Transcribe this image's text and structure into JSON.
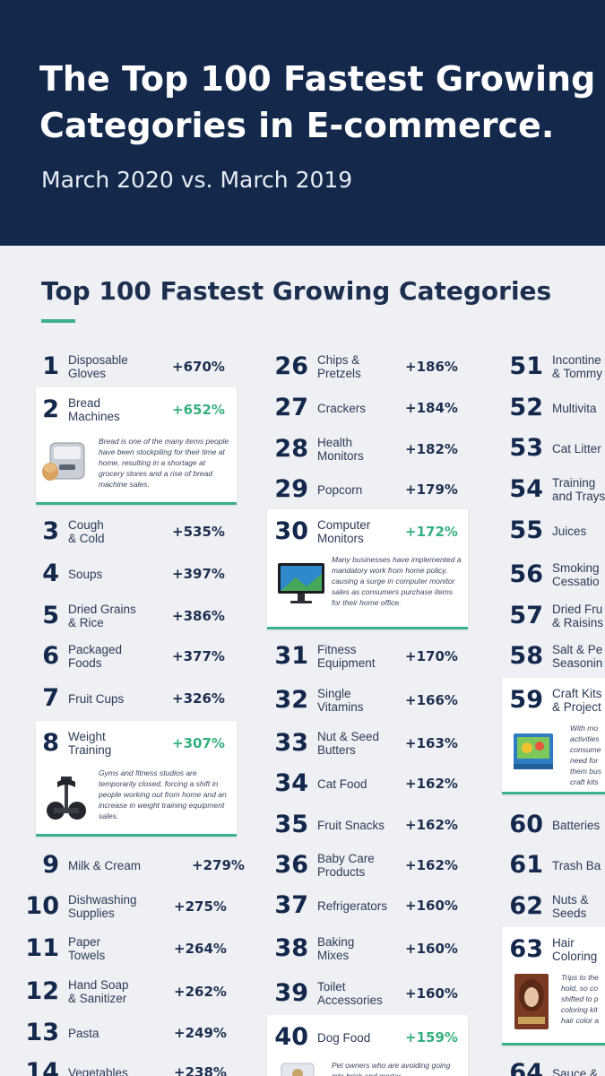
{
  "header": {
    "title_line1": "The Top 100 Fastest Growing",
    "title_line2": "Categories in E-commerce.",
    "subtitle": "March 2020 vs. March 2019"
  },
  "section": {
    "title": "Top 100 Fastest Growing Categories"
  },
  "col1": [
    {
      "num": "1",
      "name": "Disposable\nGloves",
      "pct": "+670%"
    },
    {
      "num": "2",
      "name": "Bread\nMachines",
      "pct": "+652%",
      "desc": "Bread is one of the many items people have been stockpiling for their time at home, resulting in a shortage at grocery stores and a rise of bread machine sales."
    },
    {
      "num": "3",
      "name": "Cough\n& Cold",
      "pct": "+535%"
    },
    {
      "num": "4",
      "name": "Soups",
      "pct": "+397%"
    },
    {
      "num": "5",
      "name": "Dried Grains\n& Rice",
      "pct": "+386%"
    },
    {
      "num": "6",
      "name": "Packaged\nFoods",
      "pct": "+377%"
    },
    {
      "num": "7",
      "name": "Fruit Cups",
      "pct": "+326%"
    },
    {
      "num": "8",
      "name": "Weight\nTraining",
      "pct": "+307%",
      "desc": "Gyms and fitness studios are temporarily closed, forcing a shift in people working out from home and an increase in weight training equipment sales."
    },
    {
      "num": "9",
      "name": "Milk & Cream",
      "pct": "+279%"
    },
    {
      "num": "10",
      "name": "Dishwashing\nSupplies",
      "pct": "+275%"
    },
    {
      "num": "11",
      "name": "Paper\nTowels",
      "pct": "+264%"
    },
    {
      "num": "12",
      "name": "Hand Soap\n& Sanitizer",
      "pct": "+262%"
    },
    {
      "num": "13",
      "name": "Pasta",
      "pct": "+249%"
    },
    {
      "num": "14",
      "name": "Vegetables",
      "pct": "+238%"
    }
  ],
  "col2": [
    {
      "num": "26",
      "name": "Chips &\nPretzels",
      "pct": "+186%"
    },
    {
      "num": "27",
      "name": "Crackers",
      "pct": "+184%"
    },
    {
      "num": "28",
      "name": "Health\nMonitors",
      "pct": "+182%"
    },
    {
      "num": "29",
      "name": "Popcorn",
      "pct": "+179%"
    },
    {
      "num": "30",
      "name": "Computer\nMonitors",
      "pct": "+172%",
      "desc": "Many businesses have implemented a mandatory work from home policy, causing a surge in computer monitor sales as consumers purchase items for their home office."
    },
    {
      "num": "31",
      "name": "Fitness\nEquipment",
      "pct": "+170%"
    },
    {
      "num": "32",
      "name": "Single\nVitamins",
      "pct": "+166%"
    },
    {
      "num": "33",
      "name": "Nut & Seed\nButters",
      "pct": "+163%"
    },
    {
      "num": "34",
      "name": "Cat Food",
      "pct": "+162%"
    },
    {
      "num": "35",
      "name": "Fruit Snacks",
      "pct": "+162%"
    },
    {
      "num": "36",
      "name": "Baby Care\nProducts",
      "pct": "+162%"
    },
    {
      "num": "37",
      "name": "Refrigerators",
      "pct": "+160%"
    },
    {
      "num": "38",
      "name": "Baking\nMixes",
      "pct": "+160%"
    },
    {
      "num": "39",
      "name": "Toilet\nAccessories",
      "pct": "+160%"
    },
    {
      "num": "40",
      "name": "Dog Food",
      "pct": "+159%",
      "desc": "Pet owners who are avoiding going into brick and mortar"
    }
  ],
  "col3": [
    {
      "num": "51",
      "name": "Incontine\n& Tommy"
    },
    {
      "num": "52",
      "name": "Multivita"
    },
    {
      "num": "53",
      "name": "Cat Litter"
    },
    {
      "num": "54",
      "name": "Training\nand Trays"
    },
    {
      "num": "55",
      "name": "Juices"
    },
    {
      "num": "56",
      "name": "Smoking\nCessatio"
    },
    {
      "num": "57",
      "name": "Dried Fru\n& Raisins"
    },
    {
      "num": "58",
      "name": "Salt & Pe\nSeasonin"
    },
    {
      "num": "59",
      "name": "Craft Kits\n& Project",
      "desc": "With mo\nactivities\nconsume\nneed for\nthem bus\ncraft kits"
    },
    {
      "num": "60",
      "name": "Batteries"
    },
    {
      "num": "61",
      "name": "Trash Ba"
    },
    {
      "num": "62",
      "name": "Nuts &\nSeeds"
    },
    {
      "num": "63",
      "name": "Hair\nColoring",
      "desc": "Trips to the\nhold, so co\nshifted to p\ncoloring kit\nhair color a"
    },
    {
      "num": "64",
      "name": "Sauce &"
    }
  ],
  "colors": {
    "navy": "#13284b",
    "green": "#36b07f",
    "bg": "#eef0f4"
  },
  "icons": [
    "bread-machine-image",
    "dumbbell-image",
    "computer-monitor-image",
    "craft-kit-image",
    "hair-color-box-image",
    "dog-food-image"
  ]
}
